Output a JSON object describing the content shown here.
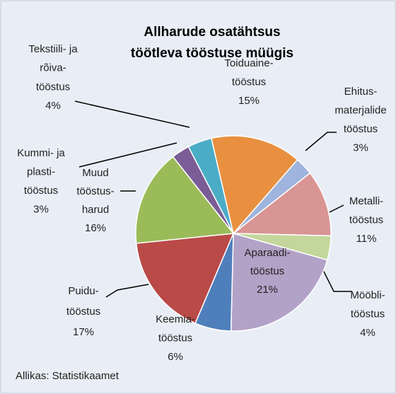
{
  "chart_data": {
    "type": "pie",
    "title": [
      "Allharude osatähtsus",
      "töötleva tööstuse müügis"
    ],
    "categories": [
      [
        "Ehitus-",
        "materjalide",
        "tööstus"
      ],
      [
        "Metalli-",
        "tööstus"
      ],
      [
        "Mööbli-",
        "tööstus"
      ],
      [
        "Aparaadi-",
        "tööstus"
      ],
      [
        "Keemia-",
        "tööstus"
      ],
      [
        "Puidu-",
        "tööstus"
      ],
      [
        "Muud",
        "tööstus-",
        "harud"
      ],
      [
        "Kummi- ja",
        "plasti-",
        "tööstus"
      ],
      [
        "Tekstiili- ja",
        "rõiva-",
        "tööstus"
      ],
      [
        "Toiduaine-",
        "tööstus"
      ]
    ],
    "values": [
      3,
      11,
      4,
      21,
      6,
      17,
      16,
      3,
      4,
      15
    ],
    "value_labels": [
      "3%",
      "11%",
      "4%",
      "21%",
      "6%",
      "17%",
      "16%",
      "3%",
      "4%",
      "15%"
    ],
    "colors": [
      "#9fb4de",
      "#d99594",
      "#c3d69b",
      "#b3a2c7",
      "#4f7fba",
      "#b94a48",
      "#9bbb59",
      "#7a5c96",
      "#4bacc6",
      "#e8903f"
    ],
    "source": "Allikas: Statistikaamet"
  }
}
